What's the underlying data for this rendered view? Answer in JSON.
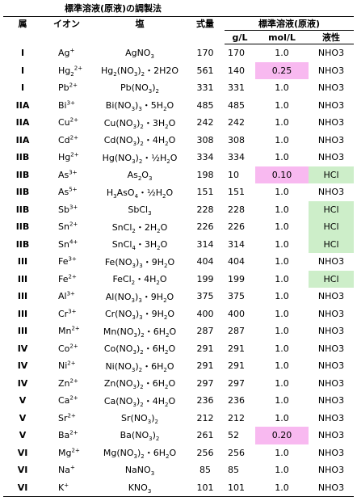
{
  "title": "標準溶液(原液)の調製法",
  "headers": {
    "group": "属",
    "ion": "イオン",
    "salt": "塩",
    "formula_weight": "式量",
    "standard_solution": "標準溶液(原液)",
    "gpl": "g/L",
    "molpl": "mol/L",
    "liquid": "液性"
  },
  "highlight_colors": {
    "pink": "#f8b9f0",
    "green": "#cdeec9"
  },
  "rows": [
    {
      "group": "I",
      "ion": "Ag<sup>+</sup>",
      "salt": "AgNO<sub>3</sub>",
      "mw": "170",
      "gl": "170",
      "mol": "1.0",
      "acid": "NHO3",
      "mol_hl": "",
      "acid_hl": ""
    },
    {
      "group": "I",
      "ion": "Hg<sub>2</sub><sup>2+</sup>",
      "salt": "Hg<sub>2</sub>(NO<sub>3</sub>)<sub>2</sub>・2H2O",
      "mw": "561",
      "gl": "140",
      "mol": "0.25",
      "acid": "NHO3",
      "mol_hl": "pink",
      "acid_hl": ""
    },
    {
      "group": "I",
      "ion": "Pb<sup>2+</sup>",
      "salt": "Pb(NO<sub>3</sub>)<sub>2</sub>",
      "mw": "331",
      "gl": "331",
      "mol": "1.0",
      "acid": "NHO3",
      "mol_hl": "",
      "acid_hl": ""
    },
    {
      "group": "IIA",
      "ion": "Bi<sup>3+</sup>",
      "salt": "Bi(NO<sub>3</sub>)<sub>3</sub>・5H<sub>2</sub>O",
      "mw": "485",
      "gl": "485",
      "mol": "1.0",
      "acid": "NHO3",
      "mol_hl": "",
      "acid_hl": ""
    },
    {
      "group": "IIA",
      "ion": "Cu<sup>2+</sup>",
      "salt": "Cu(NO<sub>3</sub>)<sub>2</sub>・3H<sub>2</sub>O",
      "mw": "242",
      "gl": "242",
      "mol": "1.0",
      "acid": "NHO3",
      "mol_hl": "",
      "acid_hl": ""
    },
    {
      "group": "IIA",
      "ion": "Cd<sup>2+</sup>",
      "salt": "Cd(NO<sub>3</sub>)<sub>2</sub>・4H<sub>2</sub>O",
      "mw": "308",
      "gl": "308",
      "mol": "1.0",
      "acid": "NHO3",
      "mol_hl": "",
      "acid_hl": ""
    },
    {
      "group": "IIB",
      "ion": "Hg<sup>2+</sup>",
      "salt": "Hg(NO<sub>3</sub>)<sub>2</sub>・½H<sub>2</sub>O",
      "mw": "334",
      "gl": "334",
      "mol": "1.0",
      "acid": "NHO3",
      "mol_hl": "",
      "acid_hl": ""
    },
    {
      "group": "IIB",
      "ion": "As<sup>3+</sup>",
      "salt": "As<sub>2</sub>O<sub>3</sub>",
      "mw": "198",
      "gl": "10",
      "mol": "0.10",
      "acid": "HCl",
      "mol_hl": "pink",
      "acid_hl": "green"
    },
    {
      "group": "IIB",
      "ion": "As<sup>5+</sup>",
      "salt": "H<sub>3</sub>AsO<sub>4</sub>・½H<sub>2</sub>O",
      "mw": "151",
      "gl": "151",
      "mol": "1.0",
      "acid": "NHO3",
      "mol_hl": "",
      "acid_hl": ""
    },
    {
      "group": "IIB",
      "ion": "Sb<sup>3+</sup>",
      "salt": "SbCl<sub>3</sub>",
      "mw": "228",
      "gl": "228",
      "mol": "1.0",
      "acid": "HCl",
      "mol_hl": "",
      "acid_hl": "green"
    },
    {
      "group": "IIB",
      "ion": "Sn<sup>2+</sup>",
      "salt": "SnCl<sub>2</sub>・2H<sub>2</sub>O",
      "mw": "226",
      "gl": "226",
      "mol": "1.0",
      "acid": "HCl",
      "mol_hl": "",
      "acid_hl": "green"
    },
    {
      "group": "IIB",
      "ion": "Sn<sup>4+</sup>",
      "salt": "SnCl<sub>4</sub>・3H<sub>2</sub>O",
      "mw": "314",
      "gl": "314",
      "mol": "1.0",
      "acid": "HCl",
      "mol_hl": "",
      "acid_hl": "green"
    },
    {
      "group": "III",
      "ion": "Fe<sup>3+</sup>",
      "salt": "Fe(NO<sub>3</sub>)<sub>3</sub>・9H<sub>2</sub>O",
      "mw": "404",
      "gl": "404",
      "mol": "1.0",
      "acid": "NHO3",
      "mol_hl": "",
      "acid_hl": ""
    },
    {
      "group": "III",
      "ion": "Fe<sup>2+</sup>",
      "salt": "FeCl<sub>2</sub>・4H<sub>2</sub>O",
      "mw": "199",
      "gl": "199",
      "mol": "1.0",
      "acid": "HCl",
      "mol_hl": "",
      "acid_hl": "green"
    },
    {
      "group": "III",
      "ion": "Al<sup>3+</sup>",
      "salt": "Al(NO<sub>3</sub>)<sub>3</sub>・9H<sub>2</sub>O",
      "mw": "375",
      "gl": "375",
      "mol": "1.0",
      "acid": "NHO3",
      "mol_hl": "",
      "acid_hl": ""
    },
    {
      "group": "III",
      "ion": "Cr<sup>3+</sup>",
      "salt": "Cr(NO<sub>3</sub>)<sub>3</sub>・9H<sub>2</sub>O",
      "mw": "400",
      "gl": "400",
      "mol": "1.0",
      "acid": "NHO3",
      "mol_hl": "",
      "acid_hl": ""
    },
    {
      "group": "III",
      "ion": "Mn<sup>2+</sup>",
      "salt": "Mn(NO<sub>3</sub>)<sub>2</sub>・6H<sub>2</sub>O",
      "mw": "287",
      "gl": "287",
      "mol": "1.0",
      "acid": "NHO3",
      "mol_hl": "",
      "acid_hl": ""
    },
    {
      "group": "IV",
      "ion": "Co<sup>2+</sup>",
      "salt": "Co(NO<sub>3</sub>)<sub>2</sub>・6H<sub>2</sub>O",
      "mw": "291",
      "gl": "291",
      "mol": "1.0",
      "acid": "NHO3",
      "mol_hl": "",
      "acid_hl": ""
    },
    {
      "group": "IV",
      "ion": "Ni<sup>2+</sup>",
      "salt": "Ni(NO<sub>3</sub>)<sub>2</sub>・6H<sub>2</sub>O",
      "mw": "291",
      "gl": "291",
      "mol": "1.0",
      "acid": "NHO3",
      "mol_hl": "",
      "acid_hl": ""
    },
    {
      "group": "IV",
      "ion": "Zn<sup>2+</sup>",
      "salt": "Zn(NO<sub>3</sub>)<sub>2</sub>・6H<sub>2</sub>O",
      "mw": "297",
      "gl": "297",
      "mol": "1.0",
      "acid": "NHO3",
      "mol_hl": "",
      "acid_hl": ""
    },
    {
      "group": "V",
      "ion": "Ca<sup>2+</sup>",
      "salt": "Ca(NO<sub>3</sub>)<sub>2</sub>・4H<sub>2</sub>O",
      "mw": "236",
      "gl": "236",
      "mol": "1.0",
      "acid": "NHO3",
      "mol_hl": "",
      "acid_hl": ""
    },
    {
      "group": "V",
      "ion": "Sr<sup>2+</sup>",
      "salt": "Sr(NO<sub>3</sub>)<sub>2</sub>",
      "mw": "212",
      "gl": "212",
      "mol": "1.0",
      "acid": "NHO3",
      "mol_hl": "",
      "acid_hl": ""
    },
    {
      "group": "V",
      "ion": "Ba<sup>2+</sup>",
      "salt": "Ba(NO<sub>3</sub>)<sub>2</sub>",
      "mw": "261",
      "gl": "52",
      "mol": "0.20",
      "acid": "NHO3",
      "mol_hl": "pink",
      "acid_hl": ""
    },
    {
      "group": "VI",
      "ion": "Mg<sup>2+</sup>",
      "salt": "Mg(NO<sub>3</sub>)<sub>2</sub>・6H<sub>2</sub>O",
      "mw": "256",
      "gl": "256",
      "mol": "1.0",
      "acid": "NHO3",
      "mol_hl": "",
      "acid_hl": ""
    },
    {
      "group": "VI",
      "ion": "Na<sup>+</sup>",
      "salt": "NaNO<sub>3</sub>",
      "mw": "85",
      "gl": "85",
      "mol": "1.0",
      "acid": "NHO3",
      "mol_hl": "",
      "acid_hl": ""
    },
    {
      "group": "VI",
      "ion": "K<sup>+</sup>",
      "salt": "KNO<sub>3</sub>",
      "mw": "101",
      "gl": "101",
      "mol": "1.0",
      "acid": "NHO3",
      "mol_hl": "",
      "acid_hl": ""
    }
  ]
}
